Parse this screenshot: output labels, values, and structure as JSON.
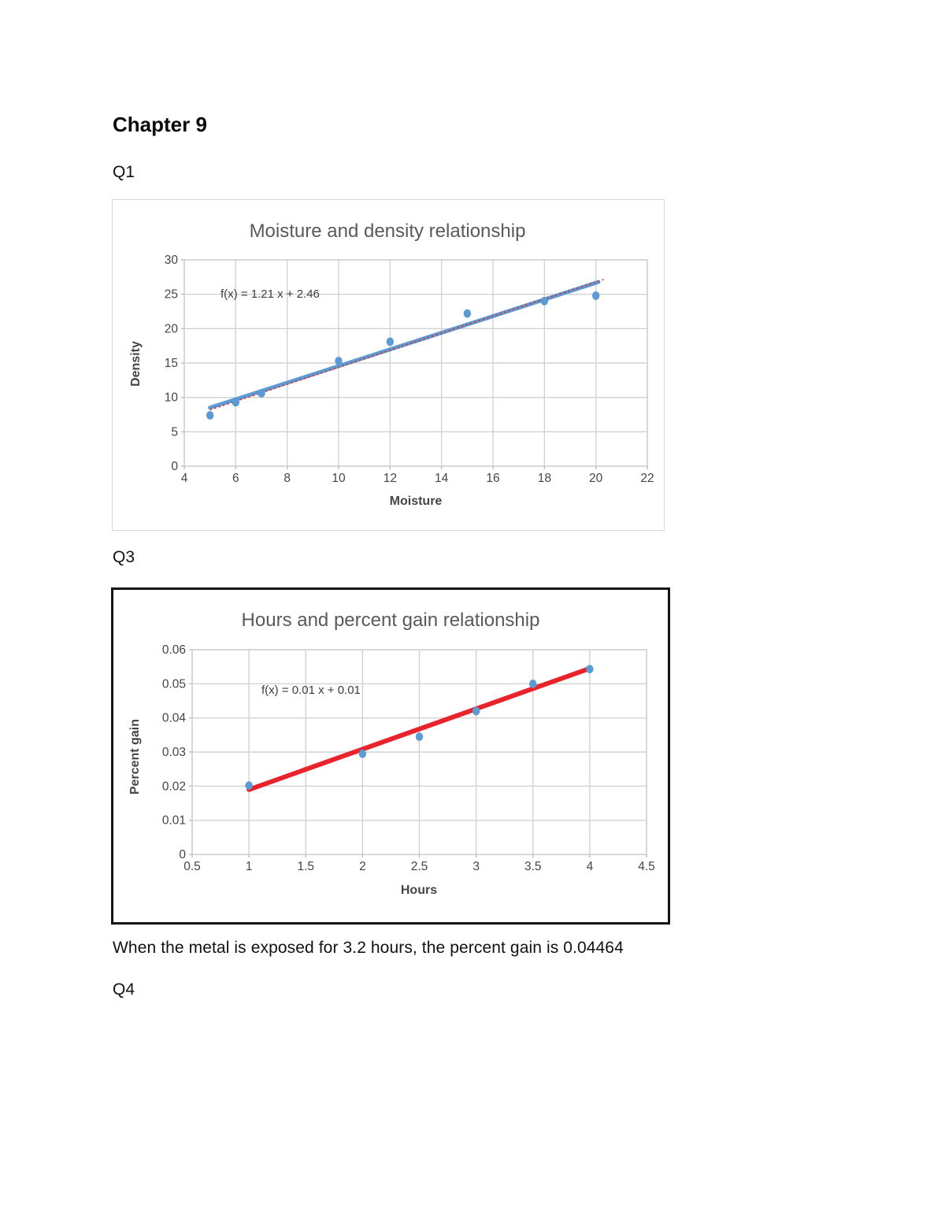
{
  "page": {
    "heading": "Chapter 9",
    "q1_label": "Q1",
    "q3_label": "Q3",
    "answer_text": "When the metal is exposed for 3.2 hours, the percent gain is 0.04464",
    "q4_label": "Q4"
  },
  "colors": {
    "point_blue": "#5b9bd5",
    "trend_blue": "#5b9bd5",
    "trend_red": "#e8232b",
    "trend_red_dotted": "#e03131",
    "grid_gray": "#d2d2d2",
    "tick_gray": "#bdbdbd",
    "chart_title_gray": "#595959",
    "axis_text_gray": "#454545",
    "equation_text": "#3d3d3d"
  },
  "chart_data": [
    {
      "type": "scatter",
      "title": "Moisture and density relationship",
      "xlabel": "Moisture",
      "ylabel": "Density",
      "equation_label": "f(x) = 1.21 x + 2.46",
      "xlim": [
        4,
        22
      ],
      "xstep": 2,
      "ylim": [
        0,
        30
      ],
      "ystep": 5,
      "grid": true,
      "legend": "none",
      "points": [
        [
          5,
          7.4
        ],
        [
          6,
          9.3
        ],
        [
          7,
          10.6
        ],
        [
          10,
          15.3
        ],
        [
          12,
          18.1
        ],
        [
          15,
          22.2
        ],
        [
          18,
          24.0
        ],
        [
          20,
          24.8
        ]
      ],
      "trendline": {
        "slope": 1.21,
        "intercept": 2.46,
        "x_from": 5,
        "x_to": 20.1,
        "color": "#5b9bd5",
        "width": 5
      },
      "trendline_dotted": {
        "from": [
          5,
          8.2
        ],
        "to": [
          20.3,
          27.15
        ],
        "color": "#e03131",
        "width": 1.7,
        "dash": "2.5 3.2"
      }
    },
    {
      "type": "scatter",
      "title": "Hours and percent gain relationship",
      "xlabel": "Hours",
      "ylabel": "Percent gain",
      "equation_label": "f(x) = 0.01 x + 0.01",
      "xlim": [
        0.5,
        4.5
      ],
      "xstep": 0.5,
      "ylim": [
        0,
        0.06
      ],
      "ystep": 0.01,
      "grid": true,
      "legend": "none",
      "points": [
        [
          1,
          0.0202
        ],
        [
          2,
          0.0295
        ],
        [
          2.5,
          0.0345
        ],
        [
          3,
          0.042
        ],
        [
          3.5,
          0.05
        ],
        [
          4,
          0.0543
        ]
      ],
      "trendline": {
        "from": [
          1,
          0.019
        ],
        "to": [
          4,
          0.0545
        ],
        "color": "#e8232b",
        "width": 6
      }
    }
  ]
}
